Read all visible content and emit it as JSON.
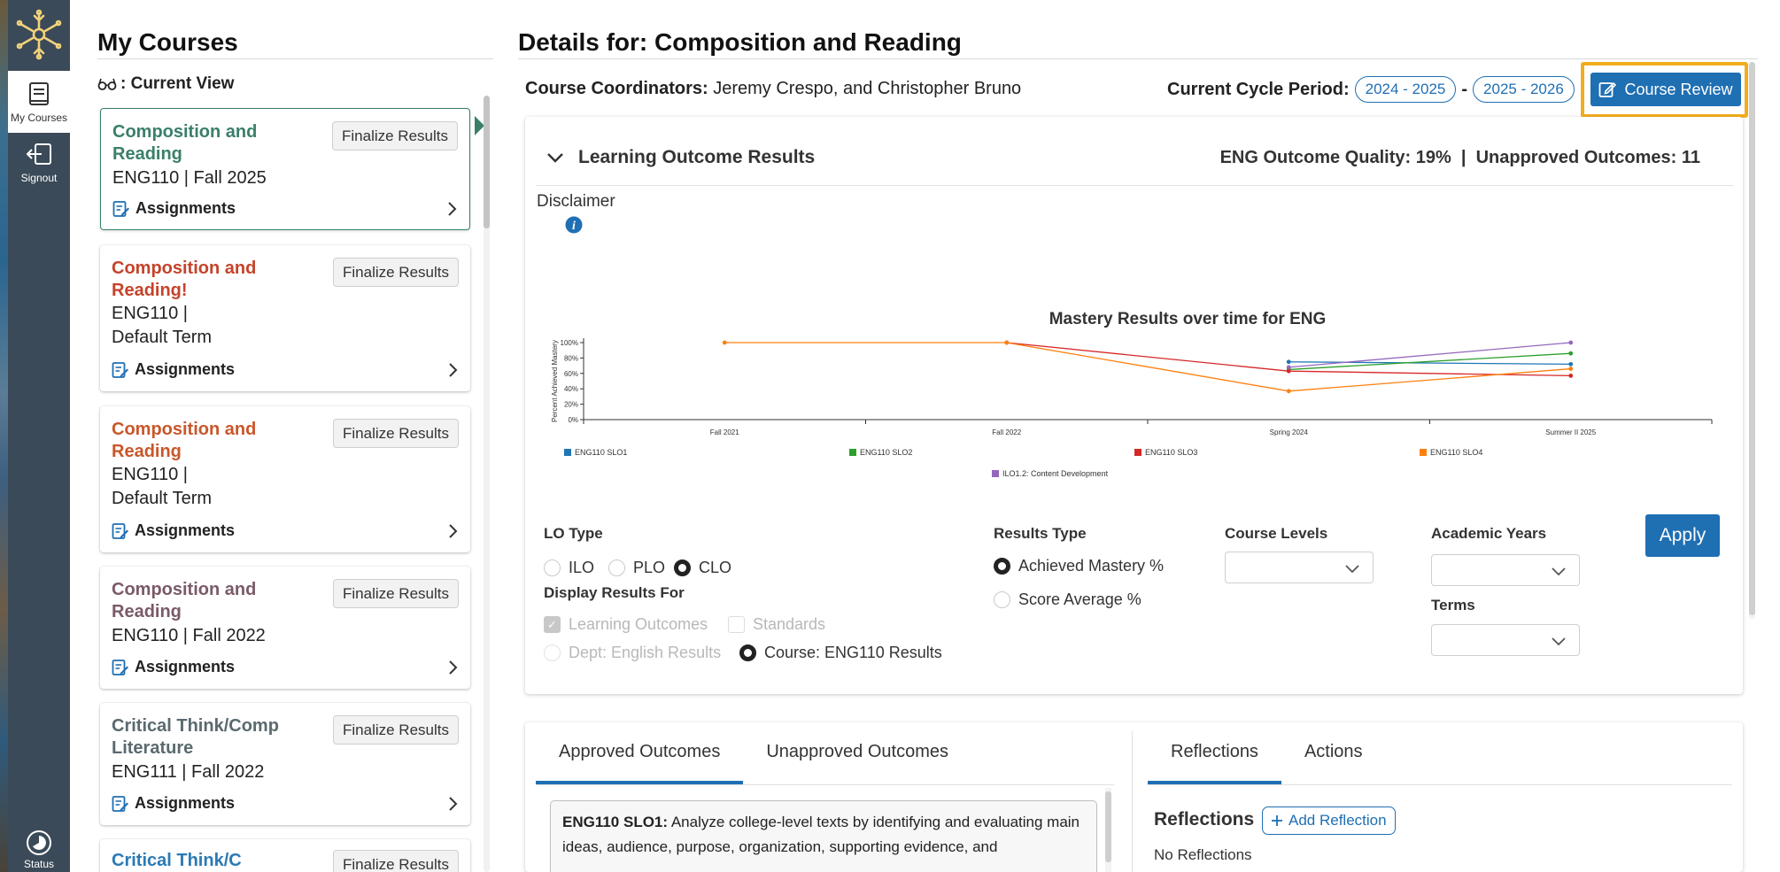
{
  "sidebar": {
    "items": [
      {
        "label": "My Courses",
        "icon": "book-icon",
        "active": true
      },
      {
        "label": "Signout",
        "icon": "signout-icon",
        "active": false
      },
      {
        "label": "Status",
        "icon": "status-icon",
        "active": false
      }
    ]
  },
  "courses_panel": {
    "title": "My Courses",
    "current_view": ": Current View",
    "courses": [
      {
        "name": "Composition and Reading",
        "code": "ENG110",
        "term": "Fall 2025",
        "meta": "ENG110  |  Fall 2025",
        "finalize": "Finalize Results",
        "assignments": "Assignments",
        "color": "#3a7f6a"
      },
      {
        "name": "Composition and Reading!",
        "code": "ENG110",
        "term": "Default Term",
        "meta": "ENG110  |",
        "meta2": "Default Term",
        "finalize": "Finalize Results",
        "assignments": "Assignments",
        "color": "#c4432b"
      },
      {
        "name": "Composition and Reading",
        "code": "ENG110",
        "term": "Default Term",
        "meta": "ENG110  |",
        "meta2": "Default Term",
        "finalize": "Finalize Results",
        "assignments": "Assignments",
        "color": "#c9572a"
      },
      {
        "name": "Composition and Reading",
        "code": "ENG110",
        "term": "Fall 2022",
        "meta": "ENG110  |  Fall 2022",
        "finalize": "Finalize Results",
        "assignments": "Assignments",
        "color": "#7a5a68"
      },
      {
        "name": "Critical Think/Comp Literature",
        "code": "ENG111",
        "term": "Fall 2022",
        "meta": "ENG111  |  Fall 2022",
        "finalize": "Finalize Results",
        "assignments": "Assignments",
        "color": "#5a6a6f"
      },
      {
        "name": "Critical Think/C",
        "finalize": "Finalize Results",
        "color": "#2a7ab5"
      }
    ]
  },
  "details": {
    "title": "Details for: Composition and Reading",
    "coordinators_label": "Course Coordinators:",
    "coordinators": " Jeremy Crespo, and Christopher Bruno",
    "cycle_label": "Current Cycle Period:",
    "cycle_start": "2024 - 2025",
    "cycle_sep": "-",
    "cycle_end": "2025 - 2026",
    "review_button": "Course Review"
  },
  "lo_results": {
    "heading": "Learning Outcome Results",
    "stats": "ENG Outcome Quality: 19%  |  Unapproved Outcomes: 11",
    "disclaimer": "Disclaimer"
  },
  "chart_data": {
    "type": "line",
    "title": "Mastery Results over time for ENG",
    "ylabel": "Percent Achieved Mastery",
    "xlabel": "",
    "categories": [
      "Fall 2021",
      "Fall 2022",
      "Spring 2024",
      "Summer II 2025"
    ],
    "ylim": [
      0,
      100
    ],
    "yticks": [
      "0%",
      "20%",
      "40%",
      "60%",
      "80%",
      "100%"
    ],
    "legend_placement": "bottom",
    "series": [
      {
        "name": "ENG110 SLO1",
        "color": "#1f77b4",
        "values": [
          null,
          null,
          75,
          72
        ]
      },
      {
        "name": "ENG110 SLO2",
        "color": "#2ca02c",
        "values": [
          null,
          null,
          65,
          86
        ]
      },
      {
        "name": "ENG110 SLO3",
        "color": "#d62728",
        "values": [
          null,
          100,
          63,
          57
        ]
      },
      {
        "name": "ENG110 SLO4",
        "color": "#ff7f0e",
        "values": [
          100,
          100,
          37,
          66
        ]
      },
      {
        "name": "ILO1.2: Content Development",
        "color": "#9467bd",
        "values": [
          null,
          null,
          68,
          100
        ]
      }
    ]
  },
  "filters": {
    "lo_type_label": "LO Type",
    "lo_types": [
      "ILO",
      "PLO",
      "CLO"
    ],
    "lo_type_selected": "CLO",
    "display_label": "Display Results For",
    "display_opts": {
      "learning_outcomes": "Learning Outcomes",
      "standards": "Standards",
      "dept": "Dept: English Results",
      "course": "Course: ENG110 Results"
    },
    "results_type_label": "Results Type",
    "results_types": [
      "Achieved Mastery %",
      "Score Average %"
    ],
    "results_type_selected": "Achieved Mastery %",
    "course_levels_label": "Course Levels",
    "academic_years_label": "Academic Years",
    "terms_label": "Terms",
    "apply": "Apply"
  },
  "outcomes": {
    "tabs": [
      "Approved Outcomes",
      "Unapproved Outcomes"
    ],
    "active_tab": "Approved Outcomes",
    "first_code": "ENG110 SLO1:",
    "first_text": " Analyze college-level texts by identifying and evaluating main ideas, audience, purpose, organization, supporting evidence, and"
  },
  "reflections": {
    "tabs": [
      "Reflections",
      "Actions"
    ],
    "active_tab": "Reflections",
    "title": "Reflections",
    "add_button": "Add Reflection",
    "empty": "No Reflections"
  }
}
